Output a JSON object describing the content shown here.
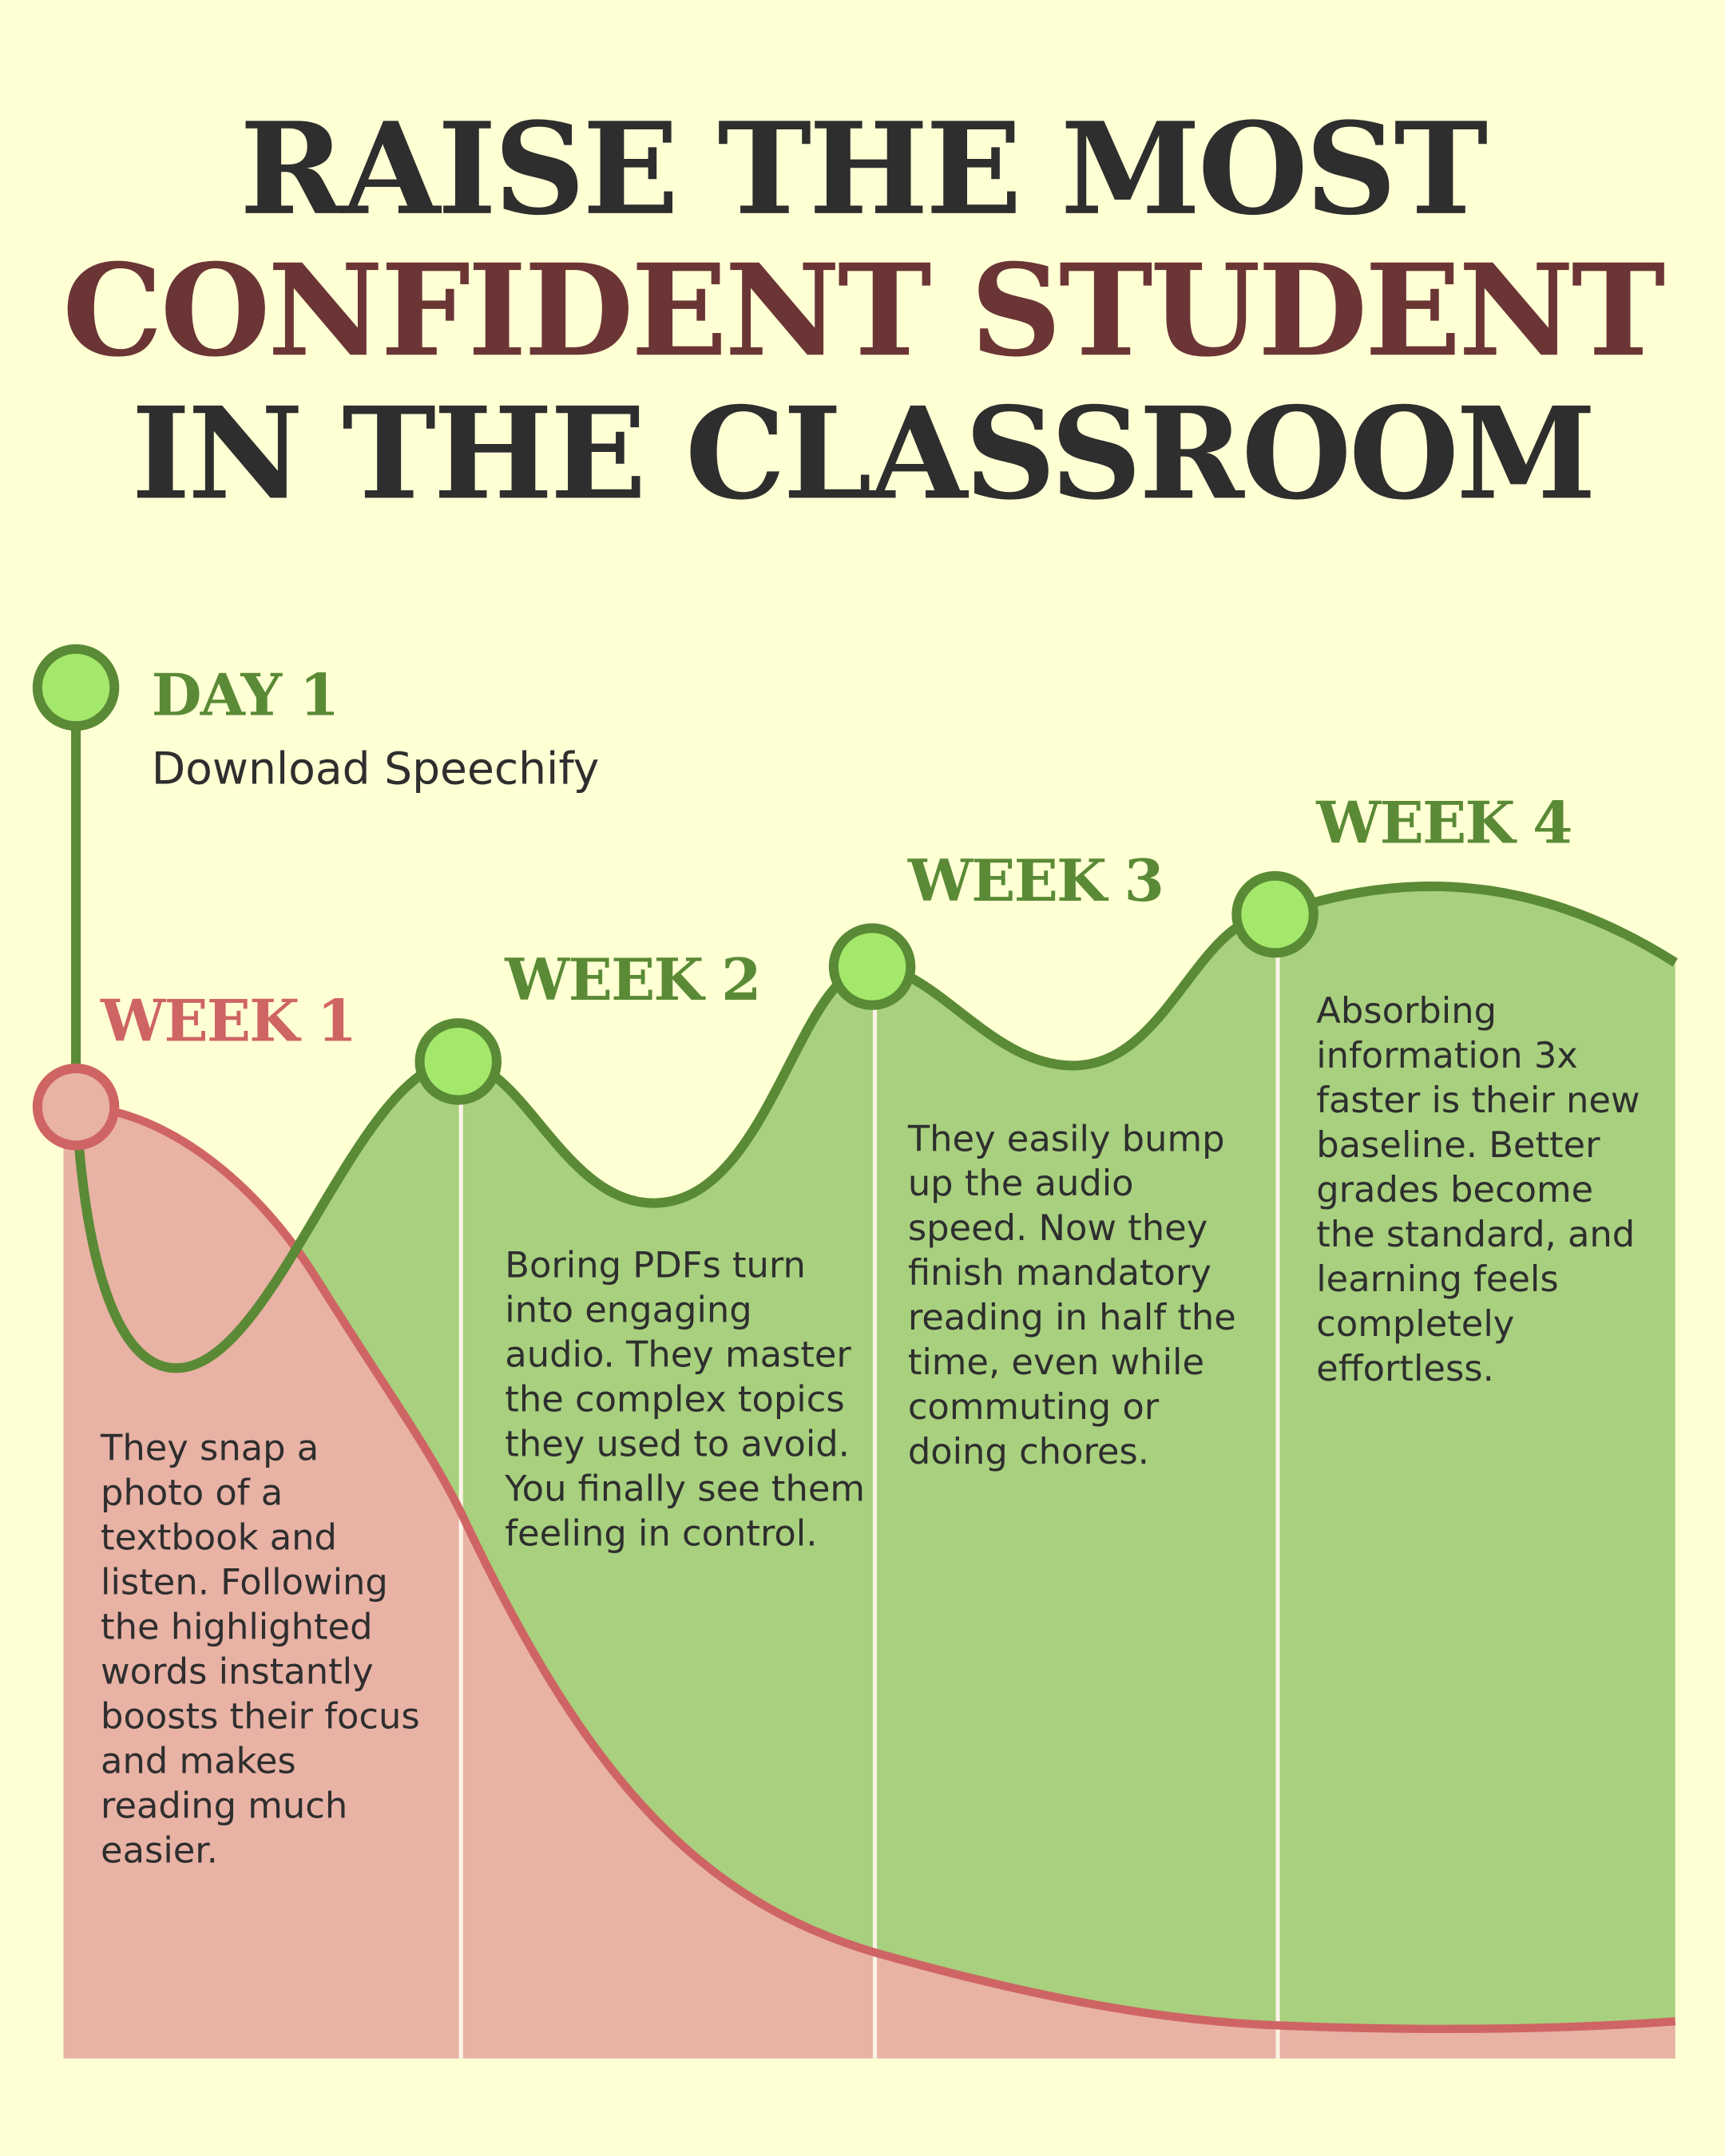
{
  "title": {
    "lines": [
      "RAISE THE MOST",
      "CONFIDENT STUDENT",
      "IN THE CLASSROOM"
    ]
  },
  "milestones": [
    {
      "label": "DAY 1",
      "text": [
        "Download Speechify"
      ]
    },
    {
      "label": "WEEK 1",
      "text": [
        "They snap a",
        "photo of a",
        "textbook and",
        "listen. Following",
        "the highlighted",
        "words instantly",
        "boosts their focus",
        "and makes",
        "reading much",
        "easier."
      ]
    },
    {
      "label": "WEEK 2",
      "text": [
        "Boring PDFs turn",
        "into engaging",
        "audio. They master",
        "the complex topics",
        "they used to avoid.",
        "You finally see them",
        "feeling in control."
      ]
    },
    {
      "label": "WEEK 3",
      "text": [
        "They easily bump",
        "up the audio",
        "speed. Now they",
        "finish mandatory",
        "reading in half the",
        "time, even while",
        "commuting or",
        "doing chores."
      ]
    },
    {
      "label": "WEEK 4",
      "text": [
        "Absorbing",
        "information 3x",
        "faster is their new",
        "baseline. Better",
        "grades become",
        "the standard, and",
        "learning feels",
        "completely",
        "effortless."
      ]
    }
  ]
}
